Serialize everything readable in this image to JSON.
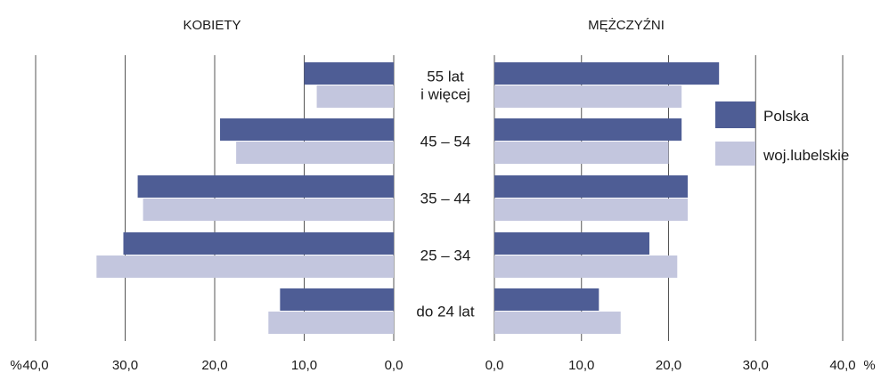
{
  "chart_data": {
    "type": "bar",
    "orientation": "horizontal",
    "layout": "population-pyramid",
    "categories": [
      "55 lat\ni więcej",
      "45 – 54",
      "35 – 44",
      "25 – 34",
      "do 24 lat"
    ],
    "colors": {
      "Polska": "#4e5d95",
      "woj.lubelskie": "#c3c6de",
      "grid": "#555555"
    },
    "legend": {
      "position": "right",
      "entries": [
        "Polska",
        "woj.lubelskie"
      ]
    },
    "grid": true,
    "panels": [
      {
        "title": "KOBIETY",
        "direction": "reversed",
        "xlim": [
          0,
          40
        ],
        "ticks": [
          "40,0",
          "30,0",
          "20,0",
          "10,0",
          "0,0"
        ],
        "axis_unit": "%",
        "series": [
          {
            "name": "Polska",
            "values": [
              10.0,
              19.4,
              28.6,
              30.2,
              12.7
            ]
          },
          {
            "name": "woj.lubelskie",
            "values": [
              8.6,
              17.6,
              28.0,
              33.2,
              14.0
            ]
          }
        ]
      },
      {
        "title": "MĘŻCZYŹNI",
        "direction": "normal",
        "xlim": [
          0,
          40
        ],
        "ticks": [
          "0,0",
          "10,0",
          "20,0",
          "30,0",
          "40,0"
        ],
        "axis_unit": "%",
        "series": [
          {
            "name": "Polska",
            "values": [
              25.8,
              21.5,
              22.2,
              17.8,
              12.0
            ]
          },
          {
            "name": "woj.lubelskie",
            "values": [
              21.5,
              20.0,
              22.2,
              21.0,
              14.5
            ]
          }
        ]
      }
    ]
  }
}
